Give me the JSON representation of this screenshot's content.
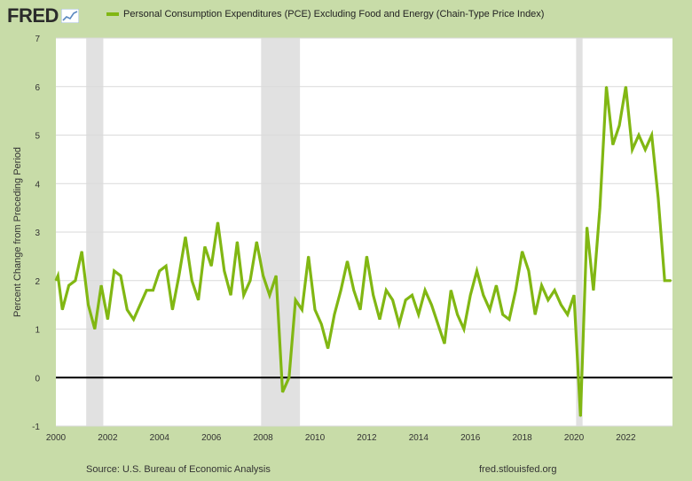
{
  "brand": {
    "logo_text": "FRED",
    "logo_icon": "chart-line-icon"
  },
  "source_text": "Source: U.S. Bureau of Economic Analysis",
  "site_text": "fred.stlouisfed.org",
  "colors": {
    "series": "#81b713",
    "frame": "#c8dca8",
    "recession": "#e1e1e1",
    "zero_line": "#000000"
  },
  "chart_data": {
    "type": "line",
    "title": "",
    "xlabel": "",
    "ylabel": "Percent Change from Preceding Period",
    "ylim": [
      -1,
      7
    ],
    "xlim": [
      2000.0,
      2023.8
    ],
    "y_ticks": [
      -1,
      0,
      1,
      2,
      3,
      4,
      5,
      6,
      7
    ],
    "x_ticks": [
      2000,
      2002,
      2004,
      2006,
      2008,
      2010,
      2012,
      2014,
      2016,
      2018,
      2020,
      2022
    ],
    "grid": true,
    "legend": "top-left",
    "recessions": [
      [
        2001.17,
        2001.83
      ],
      [
        2007.92,
        2009.42
      ],
      [
        2020.08,
        2020.33
      ]
    ],
    "series": [
      {
        "name": "Personal Consumption Expenditures (PCE) Excluding Food and Energy (Chain-Type Price Index)",
        "x": [
          2000.0,
          2000.08,
          2000.25,
          2000.5,
          2000.75,
          2001.0,
          2001.25,
          2001.5,
          2001.75,
          2002.0,
          2002.25,
          2002.5,
          2002.75,
          2003.0,
          2003.25,
          2003.5,
          2003.75,
          2004.0,
          2004.25,
          2004.5,
          2004.75,
          2005.0,
          2005.25,
          2005.5,
          2005.75,
          2006.0,
          2006.25,
          2006.5,
          2006.75,
          2007.0,
          2007.25,
          2007.5,
          2007.75,
          2008.0,
          2008.25,
          2008.5,
          2008.75,
          2009.0,
          2009.25,
          2009.5,
          2009.75,
          2010.0,
          2010.25,
          2010.5,
          2010.75,
          2011.0,
          2011.25,
          2011.5,
          2011.75,
          2012.0,
          2012.25,
          2012.5,
          2012.75,
          2013.0,
          2013.25,
          2013.5,
          2013.75,
          2014.0,
          2014.25,
          2014.5,
          2014.75,
          2015.0,
          2015.25,
          2015.5,
          2015.75,
          2016.0,
          2016.25,
          2016.5,
          2016.75,
          2017.0,
          2017.25,
          2017.5,
          2017.75,
          2018.0,
          2018.25,
          2018.5,
          2018.75,
          2019.0,
          2019.25,
          2019.5,
          2019.75,
          2020.0,
          2020.25,
          2020.5,
          2020.75,
          2021.0,
          2021.25,
          2021.5,
          2021.75,
          2022.0,
          2022.25,
          2022.5,
          2022.75,
          2023.0,
          2023.25,
          2023.5,
          2023.75
        ],
        "values": [
          2.0,
          2.1,
          1.4,
          1.9,
          2.0,
          2.6,
          1.5,
          1.0,
          1.9,
          1.2,
          2.2,
          2.1,
          1.4,
          1.2,
          1.5,
          1.8,
          1.8,
          2.2,
          2.3,
          1.4,
          2.1,
          2.9,
          2.0,
          1.6,
          2.7,
          2.3,
          3.2,
          2.2,
          1.7,
          2.8,
          1.7,
          2.0,
          2.8,
          2.1,
          1.7,
          2.1,
          -0.3,
          0.0,
          1.6,
          1.4,
          2.5,
          1.4,
          1.1,
          0.6,
          1.3,
          1.8,
          2.4,
          1.8,
          1.4,
          2.5,
          1.7,
          1.2,
          1.8,
          1.6,
          1.1,
          1.6,
          1.7,
          1.3,
          1.8,
          1.5,
          1.1,
          0.7,
          1.8,
          1.3,
          1.0,
          1.7,
          2.2,
          1.7,
          1.4,
          1.9,
          1.3,
          1.2,
          1.8,
          2.6,
          2.2,
          1.3,
          1.9,
          1.6,
          1.8,
          1.5,
          1.3,
          1.7,
          -0.8,
          3.1,
          1.8,
          3.5,
          6.0,
          4.8,
          5.2,
          6.0,
          4.7,
          5.0,
          4.7,
          5.0,
          3.7,
          2.0,
          2.0
        ]
      }
    ]
  }
}
